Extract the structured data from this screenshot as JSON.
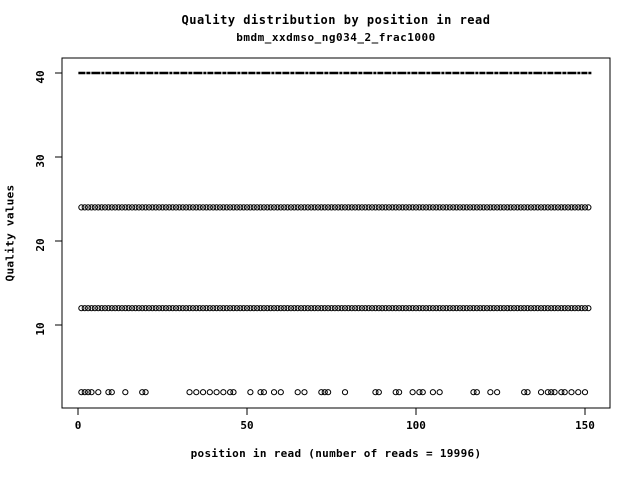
{
  "chart_data": {
    "type": "scatter",
    "title": "Quality distribution by position in read",
    "subtitle": "bmdm_xxdmso_ng034_2_frac1000",
    "xlabel": "position in read (number of reads = 19996)",
    "ylabel": "Quality values",
    "xlim": [
      -5,
      157
    ],
    "ylim": [
      0.1,
      41.8
    ],
    "x_ticks": [
      0,
      50,
      100,
      150
    ],
    "y_ticks": [
      10,
      20,
      30,
      40
    ],
    "grid": false,
    "legend": "none",
    "marker": "open-circle",
    "colors": {
      "foreground": "#000000",
      "background": "#ffffff"
    },
    "series": [
      {
        "name": "quality-40-band",
        "quality": 40,
        "style": "dense-line",
        "positions_from": 1,
        "positions_to": 151
      },
      {
        "name": "quality-24-band",
        "quality": 24,
        "style": "circles-range",
        "positions_from": 1,
        "positions_to": 151
      },
      {
        "name": "quality-12-band",
        "quality": 12,
        "style": "circles-range",
        "positions_from": 1,
        "positions_to": 151
      },
      {
        "name": "quality-2-band",
        "quality": 2,
        "style": "circles-list",
        "positions": [
          1,
          2,
          3,
          4,
          6,
          9,
          10,
          14,
          19,
          20,
          33,
          35,
          37,
          39,
          41,
          43,
          45,
          46,
          51,
          54,
          55,
          58,
          60,
          65,
          67,
          72,
          73,
          74,
          79,
          88,
          89,
          94,
          95,
          99,
          101,
          102,
          105,
          107,
          117,
          118,
          122,
          124,
          132,
          133,
          137,
          139,
          140,
          141,
          143,
          144,
          146,
          148,
          150
        ]
      }
    ]
  }
}
